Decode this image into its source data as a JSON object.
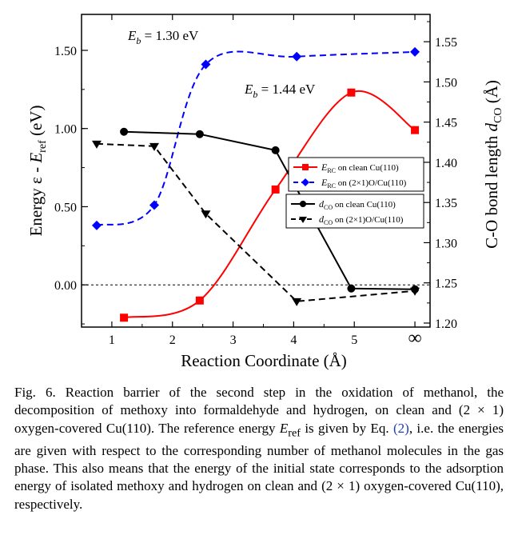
{
  "chart_data": {
    "type": "line",
    "xlabel": "Reaction Coordinate (Å)",
    "x_ticks": [
      "1",
      "2",
      "3",
      "4",
      "5",
      "∞"
    ],
    "xlim": [
      0.5,
      6.25
    ],
    "ylabel_left": "Energy  ε - E_ref  (eV)",
    "ylabel_right": "C-O bond length d_CO (Å)",
    "ylim_left": [
      -0.27,
      1.73
    ],
    "ylim_right": [
      1.195,
      1.584
    ],
    "y_ticks_left": [
      "0.00",
      "0.50",
      "1.00",
      "1.50"
    ],
    "y_ticks_right": [
      "1.20",
      "1.25",
      "1.30",
      "1.35",
      "1.40",
      "1.45",
      "1.50",
      "1.55"
    ],
    "series": [
      {
        "name": "E_RC on clean Cu(110)",
        "axis": "left",
        "color": "#ff0000",
        "style": "solid",
        "marker": "square",
        "x": [
          1.2,
          2.45,
          3.7,
          4.95,
          6.0
        ],
        "y": [
          -0.21,
          -0.1,
          0.61,
          1.23,
          0.99
        ]
      },
      {
        "name": "E_RC on (2x1)O/Cu(110)",
        "axis": "left",
        "color": "#0000ff",
        "style": "dashed",
        "marker": "diamond",
        "x": [
          0.75,
          1.7,
          2.55,
          4.05,
          6.0
        ],
        "y": [
          0.38,
          0.51,
          1.41,
          1.46,
          1.49
        ]
      },
      {
        "name": "d_CO on clean Cu(110)",
        "axis": "right",
        "color": "#000000",
        "style": "solid",
        "marker": "circle",
        "x": [
          1.2,
          2.45,
          3.7,
          4.95,
          6.0
        ],
        "y": [
          1.438,
          1.435,
          1.415,
          1.243,
          1.242
        ]
      },
      {
        "name": "d_CO on (2x1)O/Cu(110)",
        "axis": "right",
        "color": "#000000",
        "style": "dashed",
        "marker": "triangle-down",
        "x": [
          0.75,
          1.7,
          2.55,
          4.05,
          6.0
        ],
        "y": [
          1.423,
          1.42,
          1.336,
          1.227,
          1.24
        ]
      }
    ],
    "annotations": [
      {
        "label": "E_b = 1.30 eV"
      },
      {
        "label": "E_b = 1.44 eV"
      }
    ],
    "legend_placement": "right",
    "legend": [
      {
        "text": "on clean Cu(110)",
        "sub": "RC",
        "sym": "E"
      },
      {
        "text": "on (2×1)O/Cu(110)",
        "sub": "RC",
        "sym": "E"
      },
      {
        "text": "on clean Cu(110)",
        "sub": "CO",
        "sym": "d"
      },
      {
        "text": "on (2×1)O/Cu(110)",
        "sub": "CO",
        "sym": "d"
      }
    ]
  },
  "caption": {
    "label": "Fig. 6.",
    "text_1": "Reaction barrier of the second step in the oxidation of methanol, the decomposition of methoxy into formaldehyde and hydrogen, on clean and (2 × 1) oxygen-covered Cu(110). The reference energy",
    "eref": "E",
    "eref_sub": "ref",
    "text_2": "is given by Eq.",
    "ref": "(2)",
    "text_3": ", i.e. the energies are given with respect to the corresponding number of methanol molecules in the gas phase. This also means that the energy of the initial state corresponds to the adsorption energy of isolated methoxy and hydrogen on clean and (2 × 1) oxygen-covered Cu(110), respectively."
  }
}
